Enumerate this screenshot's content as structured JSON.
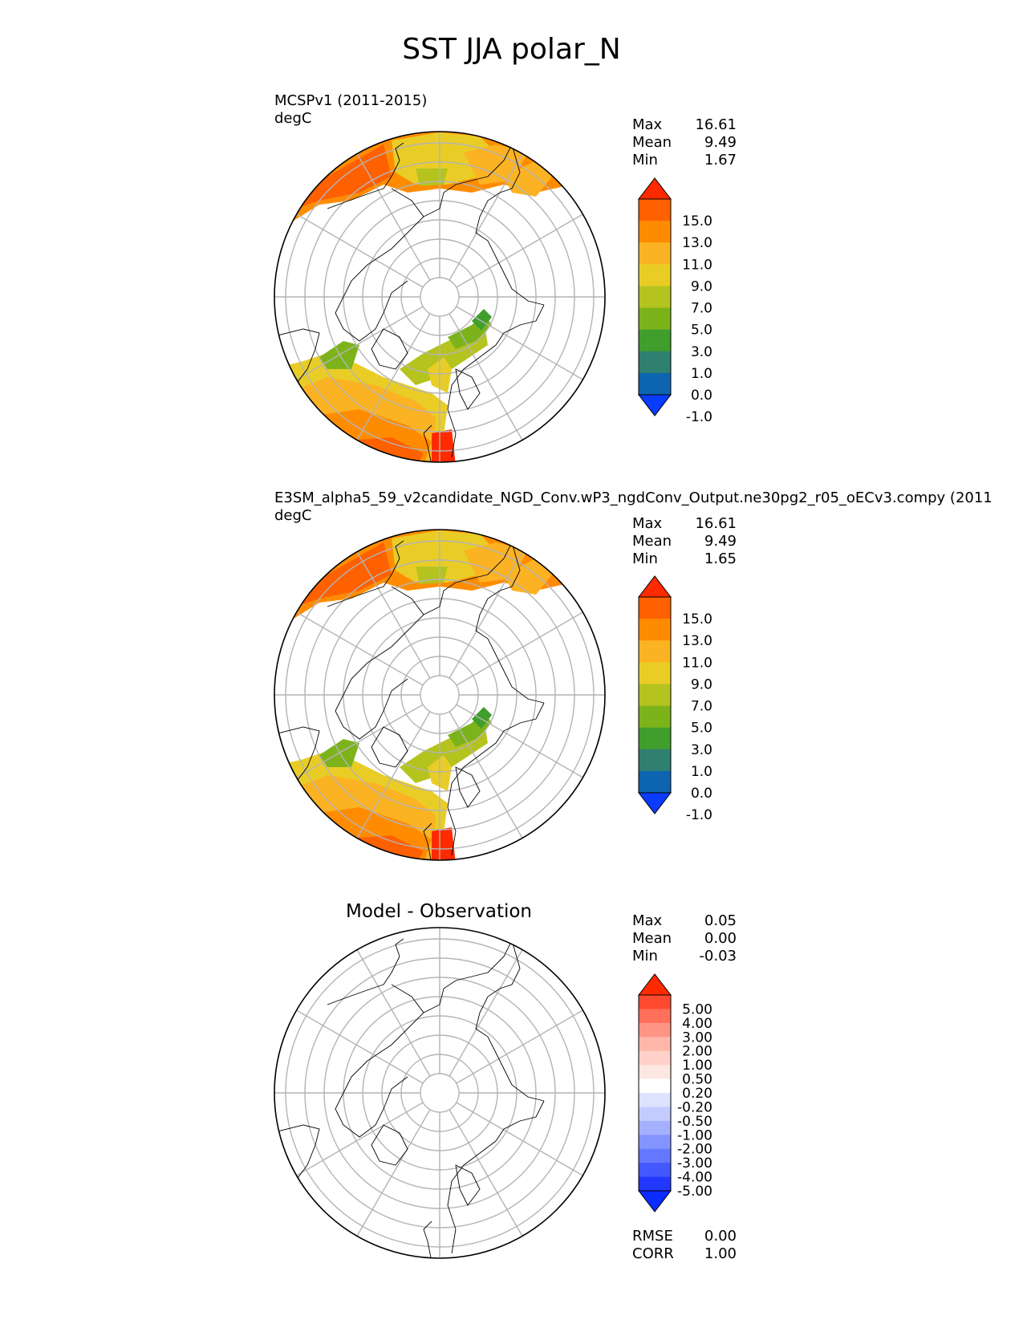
{
  "title": "SST JJA polar_N",
  "panels": [
    {
      "label_line1": "MCSPv1 (2011-2015)",
      "label_line2": "degC",
      "stats": [
        {
          "name": "Max",
          "value": "16.61"
        },
        {
          "name": "Mean",
          "value": "9.49"
        },
        {
          "name": "Min",
          "value": "1.67"
        }
      ]
    },
    {
      "label_line1": "E3SM_alpha5_59_v2candidate_NGD_Conv.wP3_ngdConv_Output.ne30pg2_r05_oECv3.compy (2011",
      "label_line2": "degC",
      "stats": [
        {
          "name": "Max",
          "value": "16.61"
        },
        {
          "name": "Mean",
          "value": "9.49"
        },
        {
          "name": "Min",
          "value": "1.65"
        }
      ]
    },
    {
      "title": "Model - Observation",
      "stats": [
        {
          "name": "Max",
          "value": "0.05"
        },
        {
          "name": "Mean",
          "value": "0.00"
        },
        {
          "name": "Min",
          "value": "-0.03"
        }
      ],
      "metrics": [
        {
          "name": "RMSE",
          "value": "0.00"
        },
        {
          "name": "CORR",
          "value": "1.00"
        }
      ]
    }
  ],
  "colorbars": {
    "field": {
      "ticks": [
        "15.0",
        "13.0",
        "11.0",
        "9.0",
        "7.0",
        "5.0",
        "3.0",
        "1.0",
        "0.0",
        "-1.0"
      ],
      "over_color": "#ff2a00",
      "under_color": "#0a3cff",
      "colors": [
        "#ff2a00",
        "#ff6000",
        "#ff8c00",
        "#fbb323",
        "#e9cd26",
        "#b5c31f",
        "#7db31a",
        "#3f9e2c",
        "#2f8070",
        "#0d64b0",
        "#0a3cff"
      ]
    },
    "diff": {
      "ticks": [
        "5.00",
        "4.00",
        "3.00",
        "2.00",
        "1.00",
        "0.50",
        "0.20",
        "-0.20",
        "-0.50",
        "-1.00",
        "-2.00",
        "-3.00",
        "-4.00",
        "-5.00"
      ],
      "over_color": "#ff2a00",
      "under_color": "#0a2cff",
      "colors": [
        "#ff2a00",
        "#ff4a30",
        "#ff6f5a",
        "#ff9484",
        "#ffb7aa",
        "#ffd1c8",
        "#fde7e2",
        "#ffffff",
        "#dde2ff",
        "#c4ccff",
        "#a5b1ff",
        "#8494ff",
        "#6477ff",
        "#4458ff",
        "#2338ff",
        "#0a2cff"
      ]
    }
  },
  "map_colors": {
    "land_outline": "#000000",
    "grid": "#b4b4b4",
    "warm_orange": "#ff8c00",
    "deep_orange": "#ff6000",
    "red": "#ff2a00",
    "light_orange": "#fbb323",
    "yellow": "#e9cd26",
    "olive": "#b5c31f",
    "light_green": "#7db31a",
    "green": "#3f9e2c"
  }
}
